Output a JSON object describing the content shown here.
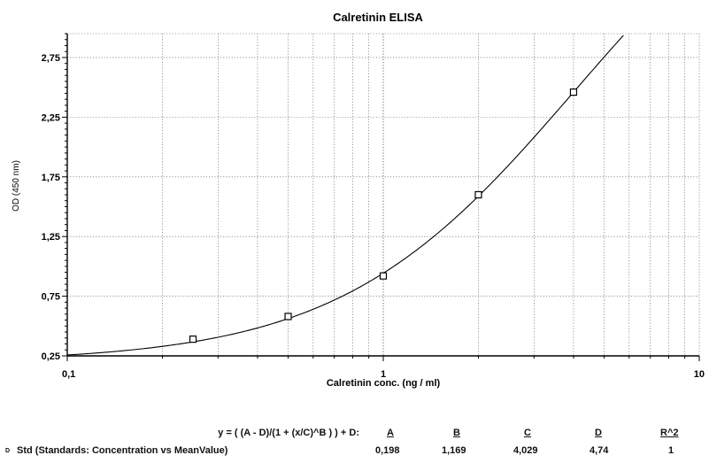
{
  "chart_data": {
    "type": "scatter",
    "title": "Calretinin ELISA",
    "xlabel": "Calretinin conc. (ng / ml)",
    "ylabel": "OD (450 nm)",
    "x_scale": "log",
    "xlim": [
      0.1,
      10
    ],
    "ylim": [
      0.25,
      2.95
    ],
    "x_tick_labels": [
      "0,1",
      "1",
      "10"
    ],
    "y_tick_labels": [
      "0,25",
      "0,75",
      "1,25",
      "1,75",
      "2,25",
      "2,75"
    ],
    "y_tick_values": [
      0.25,
      0.75,
      1.25,
      1.75,
      2.25,
      2.75
    ],
    "x_tick_values": [
      0.1,
      1,
      10
    ],
    "grid": true,
    "series": [
      {
        "points": [
          {
            "x": 0.25,
            "y": 0.39
          },
          {
            "x": 0.5,
            "y": 0.58
          },
          {
            "x": 1,
            "y": 0.92
          },
          {
            "x": 2,
            "y": 1.6
          },
          {
            "x": 4,
            "y": 2.46
          }
        ]
      }
    ],
    "fit": {
      "A": 0.198,
      "B": 1.169,
      "C": 4.029,
      "D": 4.74
    }
  },
  "equation": {
    "formula": "y = ( (A - D)/(1 + (x/C)^B ) ) + D:",
    "headers": [
      "A",
      "B",
      "C",
      "D",
      "R^2"
    ],
    "row_marker": "D",
    "row_label": "Std (Standards: Concentration vs MeanValue)",
    "values": [
      "0,198",
      "1,169",
      "4,029",
      "4,74",
      "1"
    ]
  }
}
